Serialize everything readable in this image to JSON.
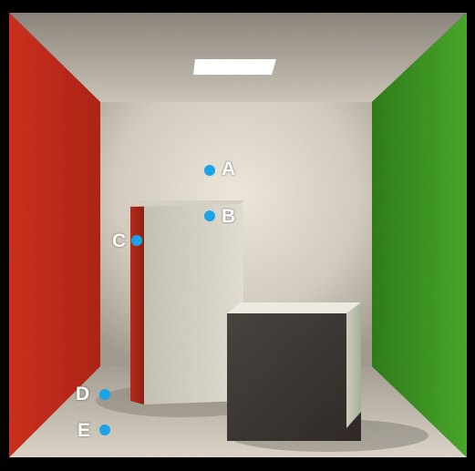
{
  "scene": {
    "subject": "cornell-box",
    "colors": {
      "left_wall": "#c8271c",
      "right_wall": "#3f9a25",
      "back_wall": "#d9d3c6",
      "ceiling": "#cfc8bb",
      "floor": "#c9c2b6",
      "light": "#ffffff",
      "frame": "#000000",
      "marker": "#1aa3e8"
    }
  },
  "markers": [
    {
      "label": "A"
    },
    {
      "label": "B"
    },
    {
      "label": "C"
    },
    {
      "label": "D"
    },
    {
      "label": "E"
    }
  ]
}
